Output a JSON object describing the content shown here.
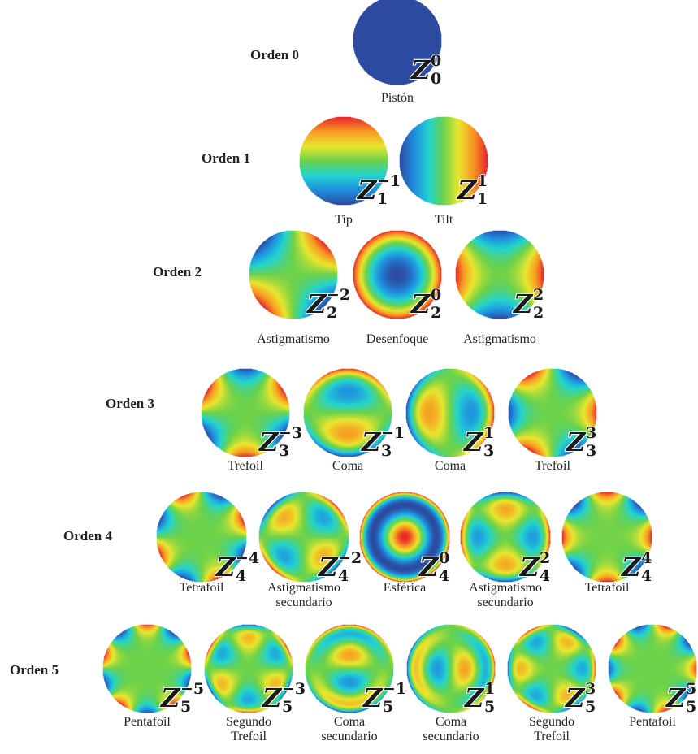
{
  "rows": [
    {
      "label": "Orden 0",
      "modes": [
        {
          "n": "0",
          "m": "0",
          "lines": [
            "Pistón"
          ]
        }
      ]
    },
    {
      "label": "Orden 1",
      "modes": [
        {
          "n": "1",
          "m": "−1",
          "lines": [
            "Tip"
          ]
        },
        {
          "n": "1",
          "m": "1",
          "lines": [
            "Tilt"
          ]
        }
      ]
    },
    {
      "label": "Orden 2",
      "modes": [
        {
          "n": "2",
          "m": "−2",
          "lines": [
            "Astigmatismo"
          ]
        },
        {
          "n": "2",
          "m": "0",
          "lines": [
            "Desenfoque"
          ]
        },
        {
          "n": "2",
          "m": "2",
          "lines": [
            "Astigmatismo"
          ]
        }
      ]
    },
    {
      "label": "Orden 3",
      "modes": [
        {
          "n": "3",
          "m": "−3",
          "lines": [
            "Trefoil"
          ]
        },
        {
          "n": "3",
          "m": "−1",
          "lines": [
            "Coma"
          ]
        },
        {
          "n": "3",
          "m": "1",
          "lines": [
            "Coma"
          ]
        },
        {
          "n": "3",
          "m": "3",
          "lines": [
            "Trefoil"
          ]
        }
      ]
    },
    {
      "label": "Orden 4",
      "modes": [
        {
          "n": "4",
          "m": "−4",
          "lines": [
            "Tetrafoil"
          ]
        },
        {
          "n": "4",
          "m": "−2",
          "lines": [
            "Astigmatismo",
            "secundario"
          ]
        },
        {
          "n": "4",
          "m": "0",
          "lines": [
            "Esférica"
          ]
        },
        {
          "n": "4",
          "m": "2",
          "lines": [
            "Astigmatismo",
            "secundario"
          ]
        },
        {
          "n": "4",
          "m": "4",
          "lines": [
            "Tetrafoil"
          ]
        }
      ]
    },
    {
      "label": "Orden 5",
      "modes": [
        {
          "n": "5",
          "m": "−5",
          "lines": [
            "Pentafoil"
          ]
        },
        {
          "n": "5",
          "m": "−3",
          "lines": [
            "Segundo",
            "Trefoil"
          ]
        },
        {
          "n": "5",
          "m": "−1",
          "lines": [
            "Coma",
            "secundario"
          ]
        },
        {
          "n": "5",
          "m": "1",
          "lines": [
            "Coma",
            "secundario"
          ]
        },
        {
          "n": "5",
          "m": "3",
          "lines": [
            "Segundo",
            "Trefoil"
          ]
        },
        {
          "n": "5",
          "m": "5",
          "lines": [
            "Pentafoil"
          ]
        }
      ]
    }
  ],
  "symbol": "Z",
  "colormap": [
    "#2c4ba0",
    "#1f8fe0",
    "#22d3d0",
    "#6cd24a",
    "#e9e62e",
    "#f79a22",
    "#e8262c"
  ]
}
